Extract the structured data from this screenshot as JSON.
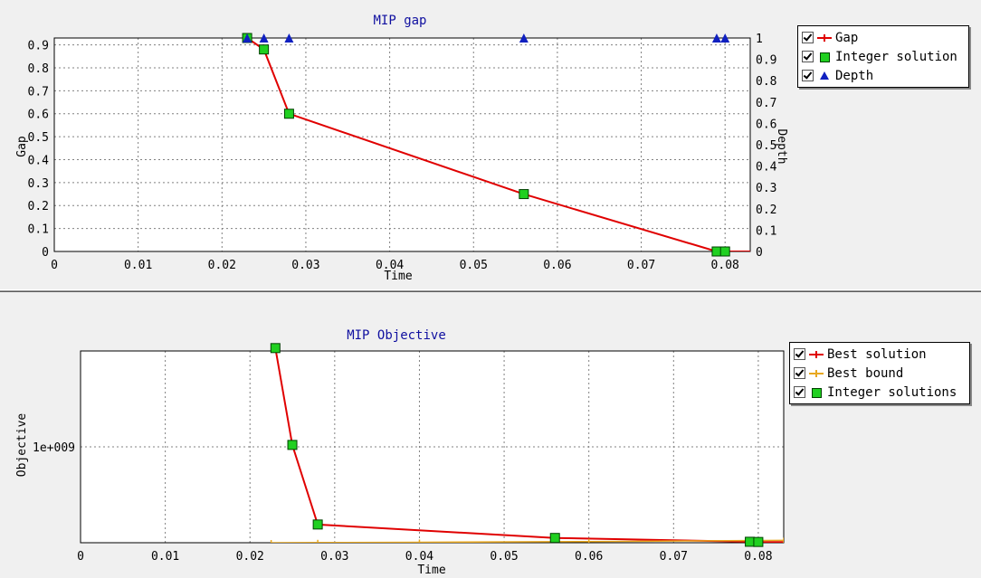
{
  "chart_data": [
    {
      "type": "line",
      "title": "MIP gap",
      "xlabel": "Time",
      "ylabel": "Gap",
      "y2label": "Depth",
      "xlim": [
        0,
        0.083
      ],
      "ylim": [
        0,
        0.93
      ],
      "y2lim": [
        0,
        1
      ],
      "x_ticks": [
        "0",
        "0.01",
        "0.02",
        "0.03",
        "0.04",
        "0.05",
        "0.06",
        "0.07",
        "0.08"
      ],
      "y_ticks": [
        "0",
        "0.1",
        "0.2",
        "0.3",
        "0.4",
        "0.5",
        "0.6",
        "0.7",
        "0.8",
        "0.9"
      ],
      "y2_ticks": [
        "0",
        "0.1",
        "0.2",
        "0.3",
        "0.4",
        "0.5",
        "0.6",
        "0.7",
        "0.8",
        "0.9",
        "1"
      ],
      "grid": true,
      "legend_position": "right",
      "series": [
        {
          "name": "Gap",
          "color": "#e00000",
          "x": [
            0.023,
            0.025,
            0.028,
            0.056,
            0.079,
            0.08,
            0.083
          ],
          "y": [
            0.93,
            0.88,
            0.6,
            0.25,
            0.0,
            0.0,
            0.0
          ]
        },
        {
          "name": "Integer solution",
          "color": "#20d020",
          "x": [
            0.023,
            0.025,
            0.028,
            0.056,
            0.079,
            0.08
          ],
          "y": [
            0.93,
            0.88,
            0.6,
            0.25,
            0.0,
            0.0
          ]
        },
        {
          "name": "Depth",
          "color": "#1020c0",
          "axis": "y2",
          "x": [
            0.023,
            0.025,
            0.028,
            0.056,
            0.079,
            0.08
          ],
          "y": [
            1,
            1,
            1,
            1,
            1,
            1
          ]
        }
      ]
    },
    {
      "type": "line",
      "title": "MIP Objective",
      "xlabel": "Time",
      "ylabel": "Objective",
      "xlim": [
        0,
        0.083
      ],
      "ylim": [
        0,
        2000000000
      ],
      "x_ticks": [
        "0",
        "0.01",
        "0.02",
        "0.03",
        "0.04",
        "0.05",
        "0.06",
        "0.07",
        "0.08"
      ],
      "y_ticks": [
        {
          "value": 1000000000,
          "label": "1e+009"
        }
      ],
      "grid": true,
      "legend_position": "right",
      "series": [
        {
          "name": "Best solution",
          "color": "#e00000",
          "x": [
            0.023,
            0.025,
            0.028,
            0.056,
            0.079,
            0.08,
            0.083
          ],
          "y": [
            2030000000,
            1020000000,
            190000000,
            50000000,
            10000000,
            8000000,
            8000000
          ]
        },
        {
          "name": "Best bound",
          "color": "#e8a820",
          "x": [
            0.0225,
            0.028,
            0.04,
            0.06,
            0.083
          ],
          "y": [
            0,
            2000000,
            5000000,
            12000000,
            25000000
          ]
        },
        {
          "name": "Integer solutions",
          "color": "#20d020",
          "x": [
            0.023,
            0.025,
            0.028,
            0.056,
            0.079,
            0.08
          ],
          "y": [
            2030000000,
            1020000000,
            190000000,
            50000000,
            10000000,
            8000000
          ]
        }
      ]
    }
  ]
}
